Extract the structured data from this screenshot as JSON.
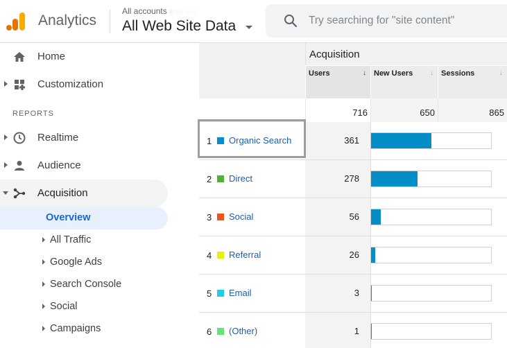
{
  "header": {
    "app_name": "Analytics",
    "account_crumb": "All accounts",
    "account_crumb_blurred": "› ··· ·· ·",
    "view_name": "All Web Site Data",
    "search_placeholder": "Try searching for \"site content\"",
    "brand_colors": {
      "logo_orange": "#f9ab00",
      "logo_dark_orange": "#e37400"
    }
  },
  "sidebar": {
    "items": [
      {
        "label": "Home",
        "icon": "home-icon"
      },
      {
        "label": "Customization",
        "icon": "customization-icon"
      }
    ],
    "reports_heading": "REPORTS",
    "report_items": [
      {
        "label": "Realtime",
        "icon": "clock-icon"
      },
      {
        "label": "Audience",
        "icon": "person-icon"
      },
      {
        "label": "Acquisition",
        "icon": "acquisition-icon"
      }
    ],
    "acquisition_sub": [
      {
        "label": "Overview"
      },
      {
        "label": "All Traffic"
      },
      {
        "label": "Google Ads"
      },
      {
        "label": "Search Console"
      },
      {
        "label": "Social"
      },
      {
        "label": "Campaigns"
      }
    ]
  },
  "table": {
    "group_title": "Acquisition",
    "columns": [
      {
        "label": "Users",
        "sort": "↓"
      },
      {
        "label": "New Users",
        "sort": "↓"
      },
      {
        "label": "Sessions",
        "sort": "↓"
      }
    ],
    "totals": {
      "users": "716",
      "new_users": "650",
      "sessions": "865"
    },
    "max_users": 716,
    "rows": [
      {
        "rank": "1",
        "channel": "Organic Search",
        "users": "361",
        "color": "#058dc7",
        "users_value": 361
      },
      {
        "rank": "2",
        "channel": "Direct",
        "users": "278",
        "color": "#50b432",
        "users_value": 278
      },
      {
        "rank": "3",
        "channel": "Social",
        "users": "56",
        "color": "#ed561b",
        "users_value": 56
      },
      {
        "rank": "4",
        "channel": "Referral",
        "users": "26",
        "color": "#edef00",
        "users_value": 26
      },
      {
        "rank": "5",
        "channel": "Email",
        "users": "3",
        "color": "#24cbe5",
        "users_value": 3
      },
      {
        "rank": "6",
        "channel": "(Other)",
        "users": "1",
        "color": "#64e572",
        "users_value": 1
      }
    ],
    "bar_color": "#058dc7"
  }
}
